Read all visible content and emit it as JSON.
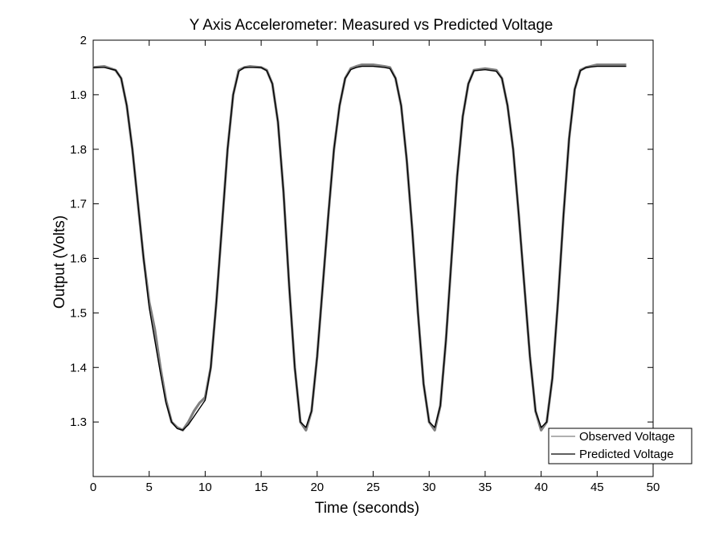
{
  "chart_data": {
    "type": "line",
    "title": "Y Axis Accelerometer: Measured vs Predicted Voltage",
    "xlabel": "Time (seconds)",
    "ylabel": "Output (Volts)",
    "xlim": [
      0,
      50
    ],
    "ylim": [
      1.2,
      2.0
    ],
    "xticks": [
      0,
      5,
      10,
      15,
      20,
      25,
      30,
      35,
      40,
      45,
      50
    ],
    "yticks": [
      1.3,
      1.4,
      1.5,
      1.6,
      1.7,
      1.8,
      1.9,
      2.0
    ],
    "xtick_labels": [
      "0",
      "5",
      "10",
      "15",
      "20",
      "25",
      "30",
      "35",
      "40",
      "45",
      "50"
    ],
    "ytick_labels": [
      "1.3",
      "1.4",
      "1.5",
      "1.6",
      "1.7",
      "1.8",
      "1.9",
      "2"
    ],
    "grid": false,
    "legend_position": "bottom-right",
    "series": [
      {
        "name": "Observed Voltage",
        "color": "#808080",
        "x": [
          0,
          1,
          2,
          2.5,
          3,
          3.5,
          4,
          4.5,
          5,
          5.5,
          6,
          6.5,
          7,
          7.5,
          8,
          8.5,
          9,
          9.5,
          10,
          10.5,
          11,
          11.5,
          12,
          12.5,
          13,
          13.5,
          14,
          15,
          15.5,
          16,
          16.5,
          17,
          17.5,
          18,
          18.5,
          19,
          19.5,
          20,
          20.5,
          21,
          21.5,
          22,
          22.5,
          23,
          23.5,
          24,
          25,
          26,
          26.5,
          27,
          27.5,
          28,
          28.5,
          29,
          29.5,
          30,
          30.5,
          31,
          31.5,
          32,
          32.5,
          33,
          33.5,
          34,
          35,
          36,
          36.5,
          37,
          37.5,
          38,
          38.5,
          39,
          39.5,
          40,
          40.5,
          41,
          41.5,
          42,
          42.5,
          43,
          43.5,
          44,
          45,
          46,
          47,
          47.6
        ],
        "y": [
          1.95,
          1.952,
          1.945,
          1.93,
          1.88,
          1.8,
          1.7,
          1.6,
          1.52,
          1.47,
          1.4,
          1.34,
          1.3,
          1.29,
          1.285,
          1.3,
          1.32,
          1.335,
          1.345,
          1.4,
          1.52,
          1.66,
          1.8,
          1.9,
          1.945,
          1.95,
          1.952,
          1.95,
          1.945,
          1.92,
          1.85,
          1.72,
          1.55,
          1.4,
          1.3,
          1.285,
          1.32,
          1.42,
          1.55,
          1.68,
          1.8,
          1.88,
          1.93,
          1.948,
          1.952,
          1.955,
          1.955,
          1.952,
          1.95,
          1.93,
          1.88,
          1.78,
          1.65,
          1.5,
          1.37,
          1.3,
          1.285,
          1.33,
          1.45,
          1.6,
          1.75,
          1.86,
          1.92,
          1.945,
          1.948,
          1.945,
          1.93,
          1.88,
          1.8,
          1.68,
          1.55,
          1.42,
          1.32,
          1.285,
          1.3,
          1.38,
          1.52,
          1.68,
          1.82,
          1.91,
          1.945,
          1.95,
          1.955,
          1.955,
          1.955,
          1.955
        ]
      },
      {
        "name": "Predicted Voltage",
        "color": "#000000",
        "x": [
          0,
          1,
          2,
          2.5,
          3,
          3.5,
          4,
          4.5,
          5,
          5.5,
          6,
          6.5,
          7,
          7.5,
          8,
          8.5,
          9,
          9.5,
          10,
          10.5,
          11,
          11.5,
          12,
          12.5,
          13,
          13.5,
          14,
          15,
          15.5,
          16,
          16.5,
          17,
          17.5,
          18,
          18.5,
          19,
          19.5,
          20,
          20.5,
          21,
          21.5,
          22,
          22.5,
          23,
          23.5,
          24,
          25,
          26,
          26.5,
          27,
          27.5,
          28,
          28.5,
          29,
          29.5,
          30,
          30.5,
          31,
          31.5,
          32,
          32.5,
          33,
          33.5,
          34,
          35,
          36,
          36.5,
          37,
          37.5,
          38,
          38.5,
          39,
          39.5,
          40,
          40.5,
          41,
          41.5,
          42,
          42.5,
          43,
          43.5,
          44,
          45,
          46,
          47,
          47.6
        ],
        "y": [
          1.95,
          1.95,
          1.945,
          1.93,
          1.88,
          1.8,
          1.7,
          1.6,
          1.51,
          1.45,
          1.39,
          1.335,
          1.3,
          1.288,
          1.285,
          1.295,
          1.31,
          1.325,
          1.34,
          1.4,
          1.52,
          1.66,
          1.8,
          1.9,
          1.943,
          1.95,
          1.95,
          1.95,
          1.944,
          1.92,
          1.85,
          1.72,
          1.55,
          1.4,
          1.3,
          1.29,
          1.32,
          1.42,
          1.55,
          1.68,
          1.8,
          1.88,
          1.93,
          1.946,
          1.95,
          1.952,
          1.952,
          1.95,
          1.948,
          1.93,
          1.88,
          1.78,
          1.65,
          1.5,
          1.37,
          1.3,
          1.29,
          1.33,
          1.45,
          1.6,
          1.75,
          1.86,
          1.92,
          1.944,
          1.946,
          1.943,
          1.93,
          1.88,
          1.8,
          1.68,
          1.55,
          1.42,
          1.32,
          1.29,
          1.3,
          1.38,
          1.52,
          1.68,
          1.82,
          1.91,
          1.944,
          1.95,
          1.952,
          1.952,
          1.952,
          1.952
        ]
      }
    ]
  }
}
